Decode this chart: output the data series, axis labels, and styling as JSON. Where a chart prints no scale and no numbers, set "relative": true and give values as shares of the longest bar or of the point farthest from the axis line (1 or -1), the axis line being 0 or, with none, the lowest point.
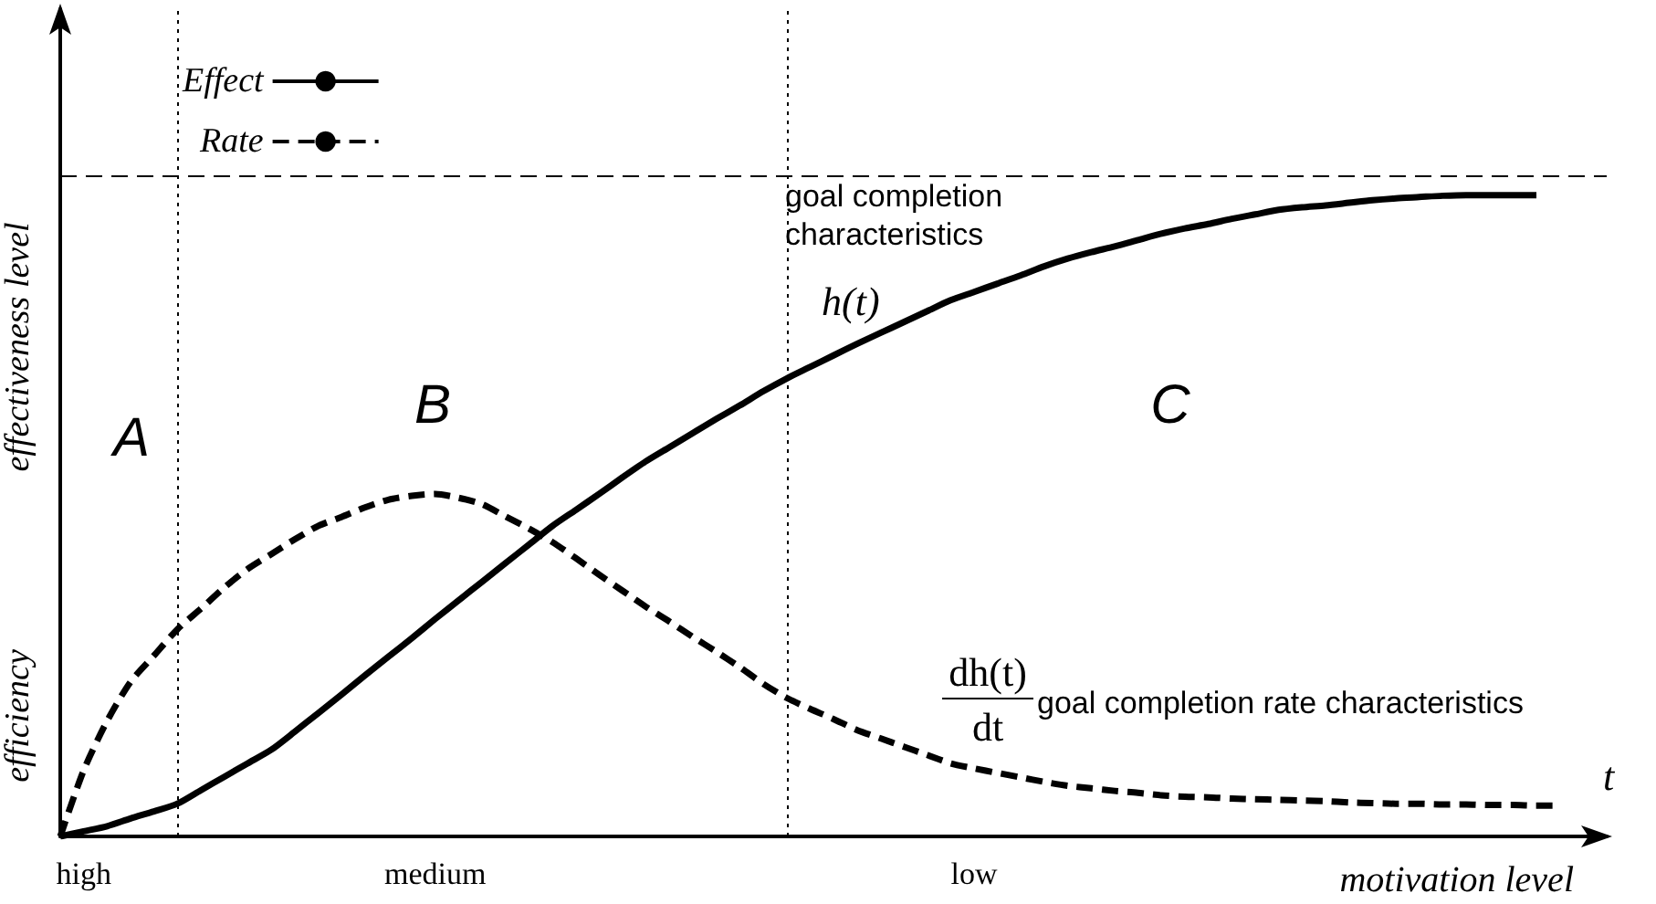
{
  "chart_data": {
    "type": "line",
    "relative": true,
    "ylabel": "effectiveness level",
    "xlabel": "motivation level",
    "categories": [
      null,
      "high",
      null,
      null,
      null,
      null,
      null,
      null,
      null,
      null,
      null,
      null,
      null,
      null,
      null,
      null,
      "medium",
      null,
      null,
      null,
      null,
      null,
      null,
      null,
      null,
      null,
      null,
      null,
      null,
      null,
      null,
      null,
      null,
      null,
      null,
      null,
      null,
      null,
      null,
      "low",
      null,
      null,
      null,
      null,
      null,
      null,
      null,
      null,
      null,
      null,
      null,
      null,
      null,
      null,
      null,
      null,
      null,
      null,
      null,
      null,
      null,
      null,
      null,
      null,
      null,
      null,
      null
    ],
    "legend": "top left",
    "grid": false,
    "marker": "none",
    "series": [
      {
        "name": "Effect",
        "color": "#000000",
        "line_style": "solid",
        "values": [
          0,
          0.008,
          0.016,
          0.028,
          0.039,
          0.051,
          0.072,
          0.093,
          0.114,
          0.135,
          0.163,
          0.192,
          0.221,
          0.251,
          0.28,
          0.309,
          0.339,
          0.368,
          0.397,
          0.426,
          0.455,
          0.484,
          0.509,
          0.534,
          0.56,
          0.585,
          0.607,
          0.629,
          0.651,
          0.672,
          0.694,
          0.714,
          0.732,
          0.75,
          0.768,
          0.785,
          0.802,
          0.819,
          0.836,
          0.849,
          0.862,
          0.875,
          0.889,
          0.901,
          0.911,
          0.92,
          0.93,
          0.94,
          0.948,
          0.955,
          0.963,
          0.97,
          0.977,
          0.981,
          0.984,
          0.988,
          0.992,
          0.995,
          0.997,
          0.999,
          1,
          1,
          1,
          1,
          null,
          null,
          null
        ]
      },
      {
        "name": "Rate",
        "color": "#000000",
        "line_style": "dashed",
        "values": [
          0,
          0.103,
          0.18,
          0.241,
          0.282,
          0.323,
          0.355,
          0.388,
          0.417,
          0.44,
          0.463,
          0.484,
          0.498,
          0.513,
          0.525,
          0.531,
          0.534,
          0.528,
          0.518,
          0.499,
          0.48,
          0.459,
          0.434,
          0.408,
          0.383,
          0.358,
          0.335,
          0.311,
          0.288,
          0.264,
          0.238,
          0.216,
          0.199,
          0.183,
          0.166,
          0.153,
          0.14,
          0.127,
          0.114,
          0.106,
          0.099,
          0.092,
          0.085,
          0.079,
          0.075,
          0.071,
          0.068,
          0.064,
          0.062,
          0.061,
          0.059,
          0.058,
          0.057,
          0.056,
          0.055,
          0.053,
          0.052,
          0.051,
          0.051,
          0.05,
          0.05,
          0.049,
          0.049,
          0.048,
          0.048,
          null,
          null
        ]
      }
    ],
    "ref_lines": [
      {
        "axis": "y",
        "value": 1.028,
        "color": "#000000",
        "line_style": "dashed"
      }
    ],
    "annotations": [
      "efficiency",
      "A",
      "B",
      "C",
      "goal completion\ncharacteristics",
      "h(t)",
      "dh(t)",
      "dt",
      "goal completion rate characteristics",
      "t"
    ]
  }
}
